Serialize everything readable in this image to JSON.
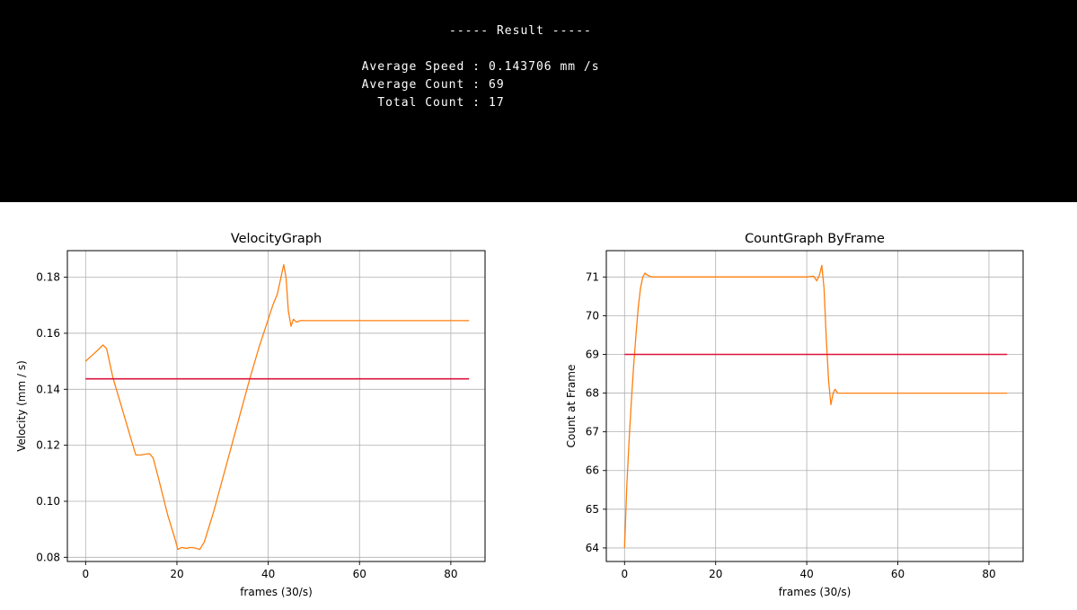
{
  "result_panel": {
    "header": "----- Result -----",
    "rows": [
      {
        "label": "Average Speed :",
        "value": "0.143706 mm /s"
      },
      {
        "label": "Average Count :",
        "value": "69"
      },
      {
        "label": "Total Count :",
        "value": "17"
      }
    ]
  },
  "colors": {
    "series": "#ff7f0e",
    "average": "#dc143c",
    "grid": "#b0b0b0",
    "panel_bg": "#000000"
  },
  "chart_data": [
    {
      "type": "line",
      "title": "VelocityGraph",
      "xlabel": "frames (30/s)",
      "ylabel": "Velocity (mm / s)",
      "xlim": [
        -4,
        87.5
      ],
      "ylim": [
        0.0785,
        0.1895
      ],
      "xticks": [
        0,
        20,
        40,
        60,
        80
      ],
      "yticks": [
        0.08,
        0.1,
        0.12,
        0.14,
        0.16,
        0.18
      ],
      "ytick_labels": [
        "0.08",
        "0.10",
        "0.12",
        "0.14",
        "0.16",
        "0.18"
      ],
      "grid": true,
      "series": [
        {
          "x": [
            0,
            2,
            3,
            3.8,
            4.6,
            6,
            8,
            10,
            11,
            12,
            13,
            14,
            14.8,
            16,
            18,
            19.5,
            20.2,
            21,
            22,
            23,
            24,
            25,
            26,
            28,
            30,
            32,
            34,
            36,
            38,
            40,
            41,
            42,
            42.8,
            43.4,
            43.9,
            44.4,
            45,
            45.5,
            46.2,
            47,
            48,
            50,
            60,
            70,
            80,
            84
          ],
          "y": [
            0.15,
            0.153,
            0.1545,
            0.1558,
            0.1545,
            0.144,
            0.133,
            0.122,
            0.1165,
            0.1165,
            0.1168,
            0.117,
            0.1155,
            0.108,
            0.095,
            0.087,
            0.0828,
            0.0835,
            0.0832,
            0.0835,
            0.0833,
            0.0828,
            0.0855,
            0.096,
            0.108,
            0.12,
            0.132,
            0.144,
            0.155,
            0.165,
            0.17,
            0.174,
            0.18,
            0.1845,
            0.18,
            0.168,
            0.1625,
            0.165,
            0.164,
            0.1645,
            0.1645,
            0.1645,
            0.1645,
            0.1645,
            0.1645,
            0.1645
          ]
        },
        {
          "x": [
            0,
            84
          ],
          "y": [
            0.143706,
            0.143706
          ]
        }
      ]
    },
    {
      "type": "line",
      "title": "CountGraph ByFrame",
      "xlabel": "frames (30/s)",
      "ylabel": "Count at Frame",
      "xlim": [
        -4,
        87.5
      ],
      "ylim": [
        63.65,
        71.68
      ],
      "xticks": [
        0,
        20,
        40,
        60,
        80
      ],
      "yticks": [
        64,
        65,
        66,
        67,
        68,
        69,
        70,
        71
      ],
      "ytick_labels": [
        "64",
        "65",
        "66",
        "67",
        "68",
        "69",
        "70",
        "71"
      ],
      "grid": true,
      "series": [
        {
          "x": [
            0,
            0.5,
            1,
            1.5,
            2,
            2.5,
            3,
            3.5,
            4,
            4.5,
            5,
            6,
            8,
            20,
            40,
            41.5,
            42.2,
            42.8,
            43.3,
            43.8,
            44.3,
            44.8,
            45.3,
            45.8,
            46.2,
            46.8,
            47.5,
            50,
            60,
            84
          ],
          "y": [
            64,
            65.6,
            66.8,
            67.8,
            68.7,
            69.5,
            70.2,
            70.7,
            71.0,
            71.1,
            71.05,
            71.0,
            71.0,
            71.0,
            71.0,
            71.02,
            70.9,
            71.05,
            71.3,
            70.7,
            69.4,
            68.3,
            67.7,
            68.0,
            68.1,
            68.0,
            68.0,
            68.0,
            68.0,
            68.0
          ]
        },
        {
          "x": [
            0,
            84
          ],
          "y": [
            69,
            69
          ]
        }
      ]
    }
  ]
}
